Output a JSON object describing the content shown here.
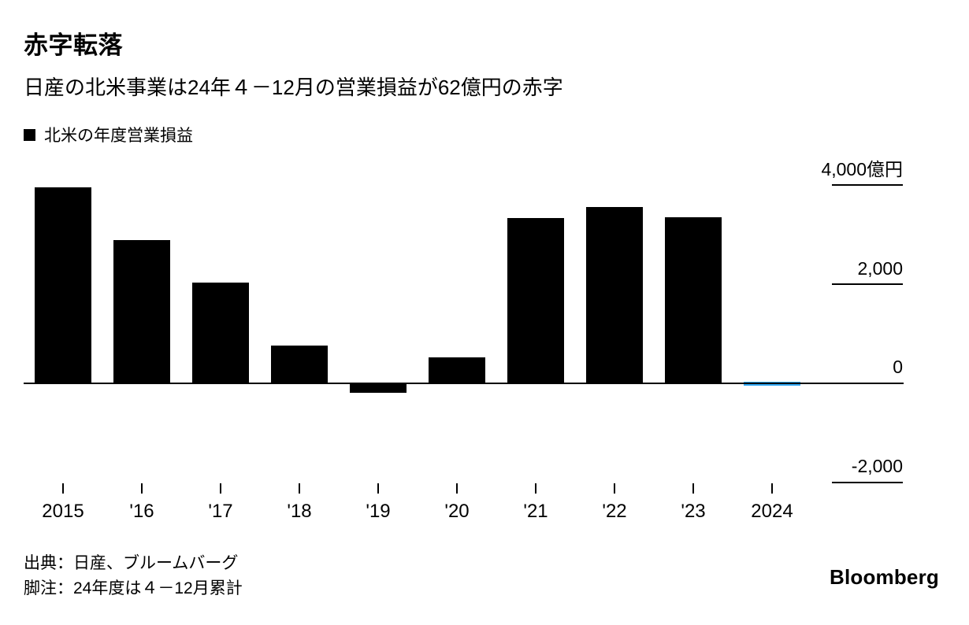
{
  "header": {
    "title": "赤字転落",
    "subtitle": "日産の北米事業は24年４－12月の営業損益が62億円の赤字"
  },
  "legend": {
    "label": "北米の年度営業損益",
    "swatch_color": "#000000"
  },
  "chart_data": {
    "type": "bar",
    "title": "北米の年度営業損益",
    "categories": [
      "2015",
      "'16",
      "'17",
      "'18",
      "'19",
      "'20",
      "'21",
      "'22",
      "'23",
      "2024"
    ],
    "values": [
      3950,
      2890,
      2030,
      760,
      -190,
      515,
      3330,
      3560,
      3350,
      -62
    ],
    "unit": "億円",
    "bar_colors": [
      "#000000",
      "#000000",
      "#000000",
      "#000000",
      "#000000",
      "#000000",
      "#000000",
      "#000000",
      "#000000",
      "#33a9f5"
    ],
    "yticks": [
      {
        "value": 4000,
        "label": "4,000億円"
      },
      {
        "value": 2000,
        "label": "2,000"
      },
      {
        "value": 0,
        "label": "0"
      },
      {
        "value": -2000,
        "label": "-2,000"
      }
    ],
    "ylim": [
      -2115,
      4430
    ],
    "grid": false,
    "legend_position": "top-left",
    "accent_color": "#33a9f5"
  },
  "footer": {
    "source": "出典：日産、ブルームバーグ",
    "note": "脚注：24年度は４－12月累計",
    "brand": "Bloomberg"
  }
}
